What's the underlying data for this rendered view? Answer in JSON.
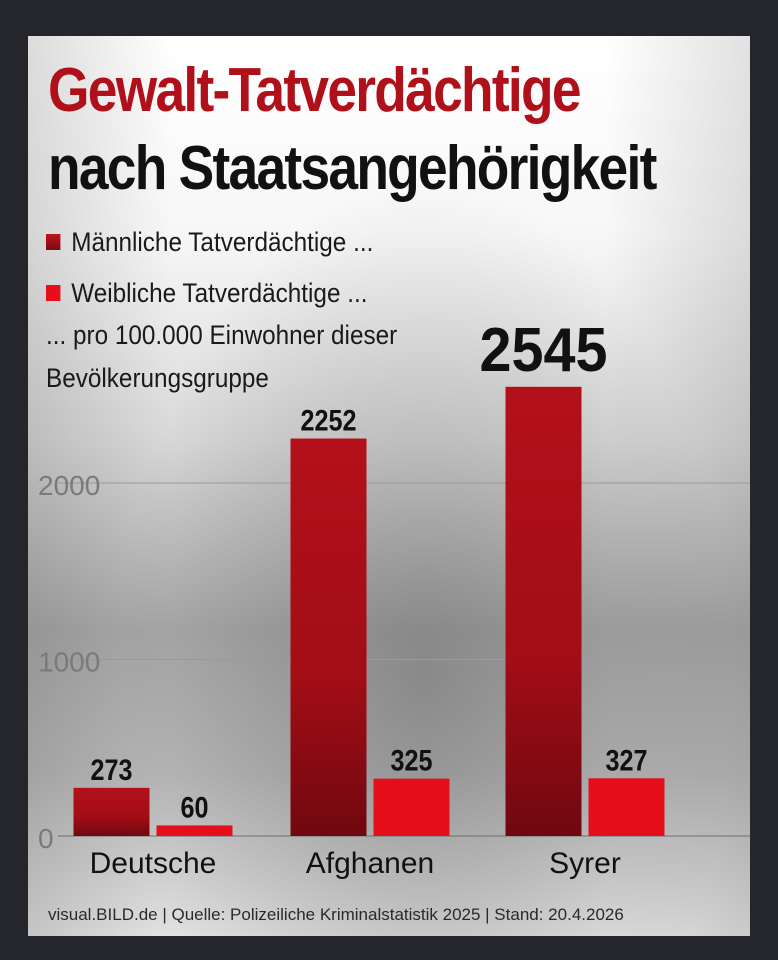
{
  "title_line1": "Gewalt-Tatverdächtige",
  "title_line2": "nach Staatsangehörigkeit",
  "legend": {
    "male": "Männliche Tatverdächtige ...",
    "female": "Weibliche Tatverdächtige ...",
    "note_line1": "... pro 100.000 Einwohner dieser",
    "note_line2": "Bevölkerungsgruppe"
  },
  "colors": {
    "male_bar": "#a30d16",
    "female_bar": "#e50f1c",
    "title_red": "#b0101a"
  },
  "chart_data": {
    "type": "bar",
    "categories": [
      "Deutsche",
      "Afghanen",
      "Syrer"
    ],
    "series": [
      {
        "name": "Männliche Tatverdächtige ...",
        "values": [
          273,
          2252,
          2545
        ]
      },
      {
        "name": "Weibliche Tatverdächtige ...",
        "values": [
          60,
          325,
          327
        ]
      }
    ],
    "data_labels": [
      [
        "273",
        "2252",
        "2545"
      ],
      [
        "60",
        "325",
        "327"
      ]
    ],
    "yticks": [
      0,
      1000,
      2000
    ],
    "ylim": [
      0,
      2600
    ],
    "grid": true,
    "legend": "top-left",
    "xlabel": "",
    "ylabel": ""
  },
  "footer": "visual.BILD.de | Quelle: Polizeiliche Kriminalstatistik 2025 | Stand: 20.4.2026"
}
